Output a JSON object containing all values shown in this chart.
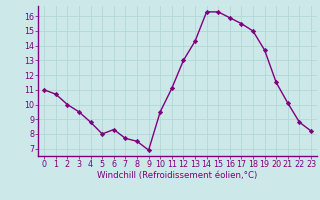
{
  "x": [
    0,
    1,
    2,
    3,
    4,
    5,
    6,
    7,
    8,
    9,
    10,
    11,
    12,
    13,
    14,
    15,
    16,
    17,
    18,
    19,
    20,
    21,
    22,
    23
  ],
  "y": [
    11.0,
    10.7,
    10.0,
    9.5,
    8.8,
    8.0,
    8.3,
    7.7,
    7.5,
    6.9,
    9.5,
    11.1,
    13.0,
    14.3,
    16.3,
    16.3,
    15.9,
    15.5,
    15.0,
    13.7,
    11.5,
    10.1,
    8.8,
    8.2
  ],
  "line_color": "#800080",
  "marker": "D",
  "marker_size": 2.2,
  "bg_color": "#cce8e8",
  "grid_color": "#b0d8d8",
  "xlabel": "Windchill (Refroidissement éolien,°C)",
  "xlabel_color": "#800080",
  "tick_color": "#800080",
  "spine_color": "#800080",
  "xlim": [
    -0.5,
    23.5
  ],
  "ylim": [
    6.5,
    16.7
  ],
  "yticks": [
    7,
    8,
    9,
    10,
    11,
    12,
    13,
    14,
    15,
    16
  ],
  "xticks": [
    0,
    1,
    2,
    3,
    4,
    5,
    6,
    7,
    8,
    9,
    10,
    11,
    12,
    13,
    14,
    15,
    16,
    17,
    18,
    19,
    20,
    21,
    22,
    23
  ],
  "tick_fontsize": 5.8,
  "xlabel_fontsize": 6.2,
  "ylabel_fontsize": 6.0,
  "linewidth": 1.0
}
